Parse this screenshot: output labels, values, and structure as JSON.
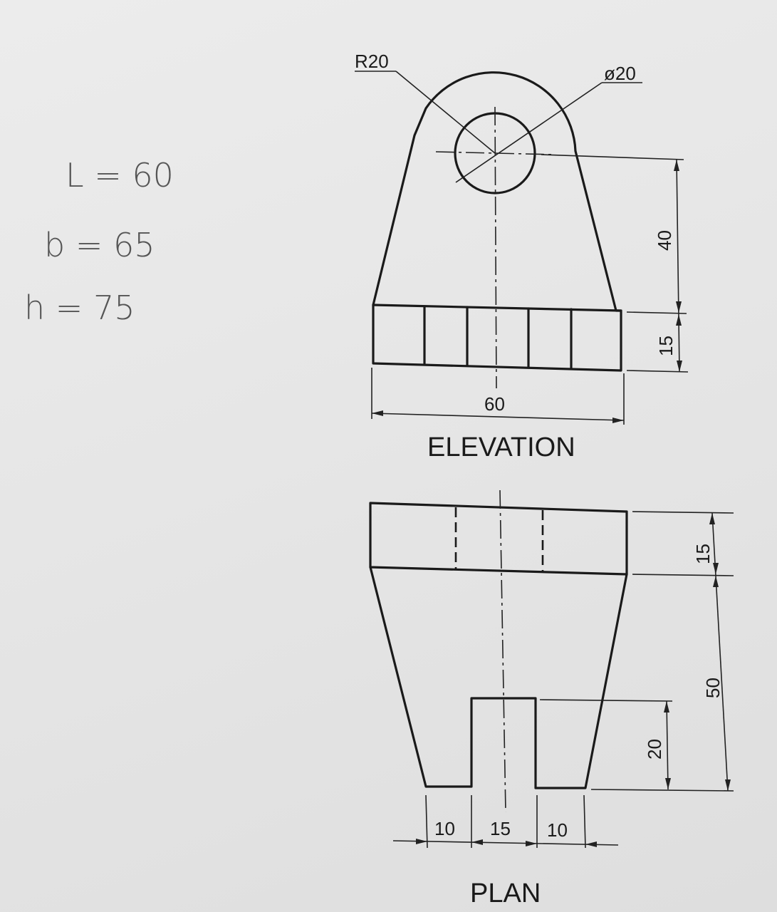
{
  "notes": {
    "line1": "L = 60",
    "line2": "b = 65",
    "line3": "h = 75"
  },
  "elevation": {
    "title": "ELEVATION",
    "radius_label": "R20",
    "hole_label": "ø20",
    "dim_base_width": "60",
    "dim_center_height": "40",
    "dim_base_height": "15"
  },
  "plan": {
    "title": "PLAN",
    "dim_top_height": "15",
    "dim_body_height": "50",
    "dim_slot_depth": "20",
    "dim_left_foot": "10",
    "dim_slot_width": "15",
    "dim_right_foot": "10"
  }
}
